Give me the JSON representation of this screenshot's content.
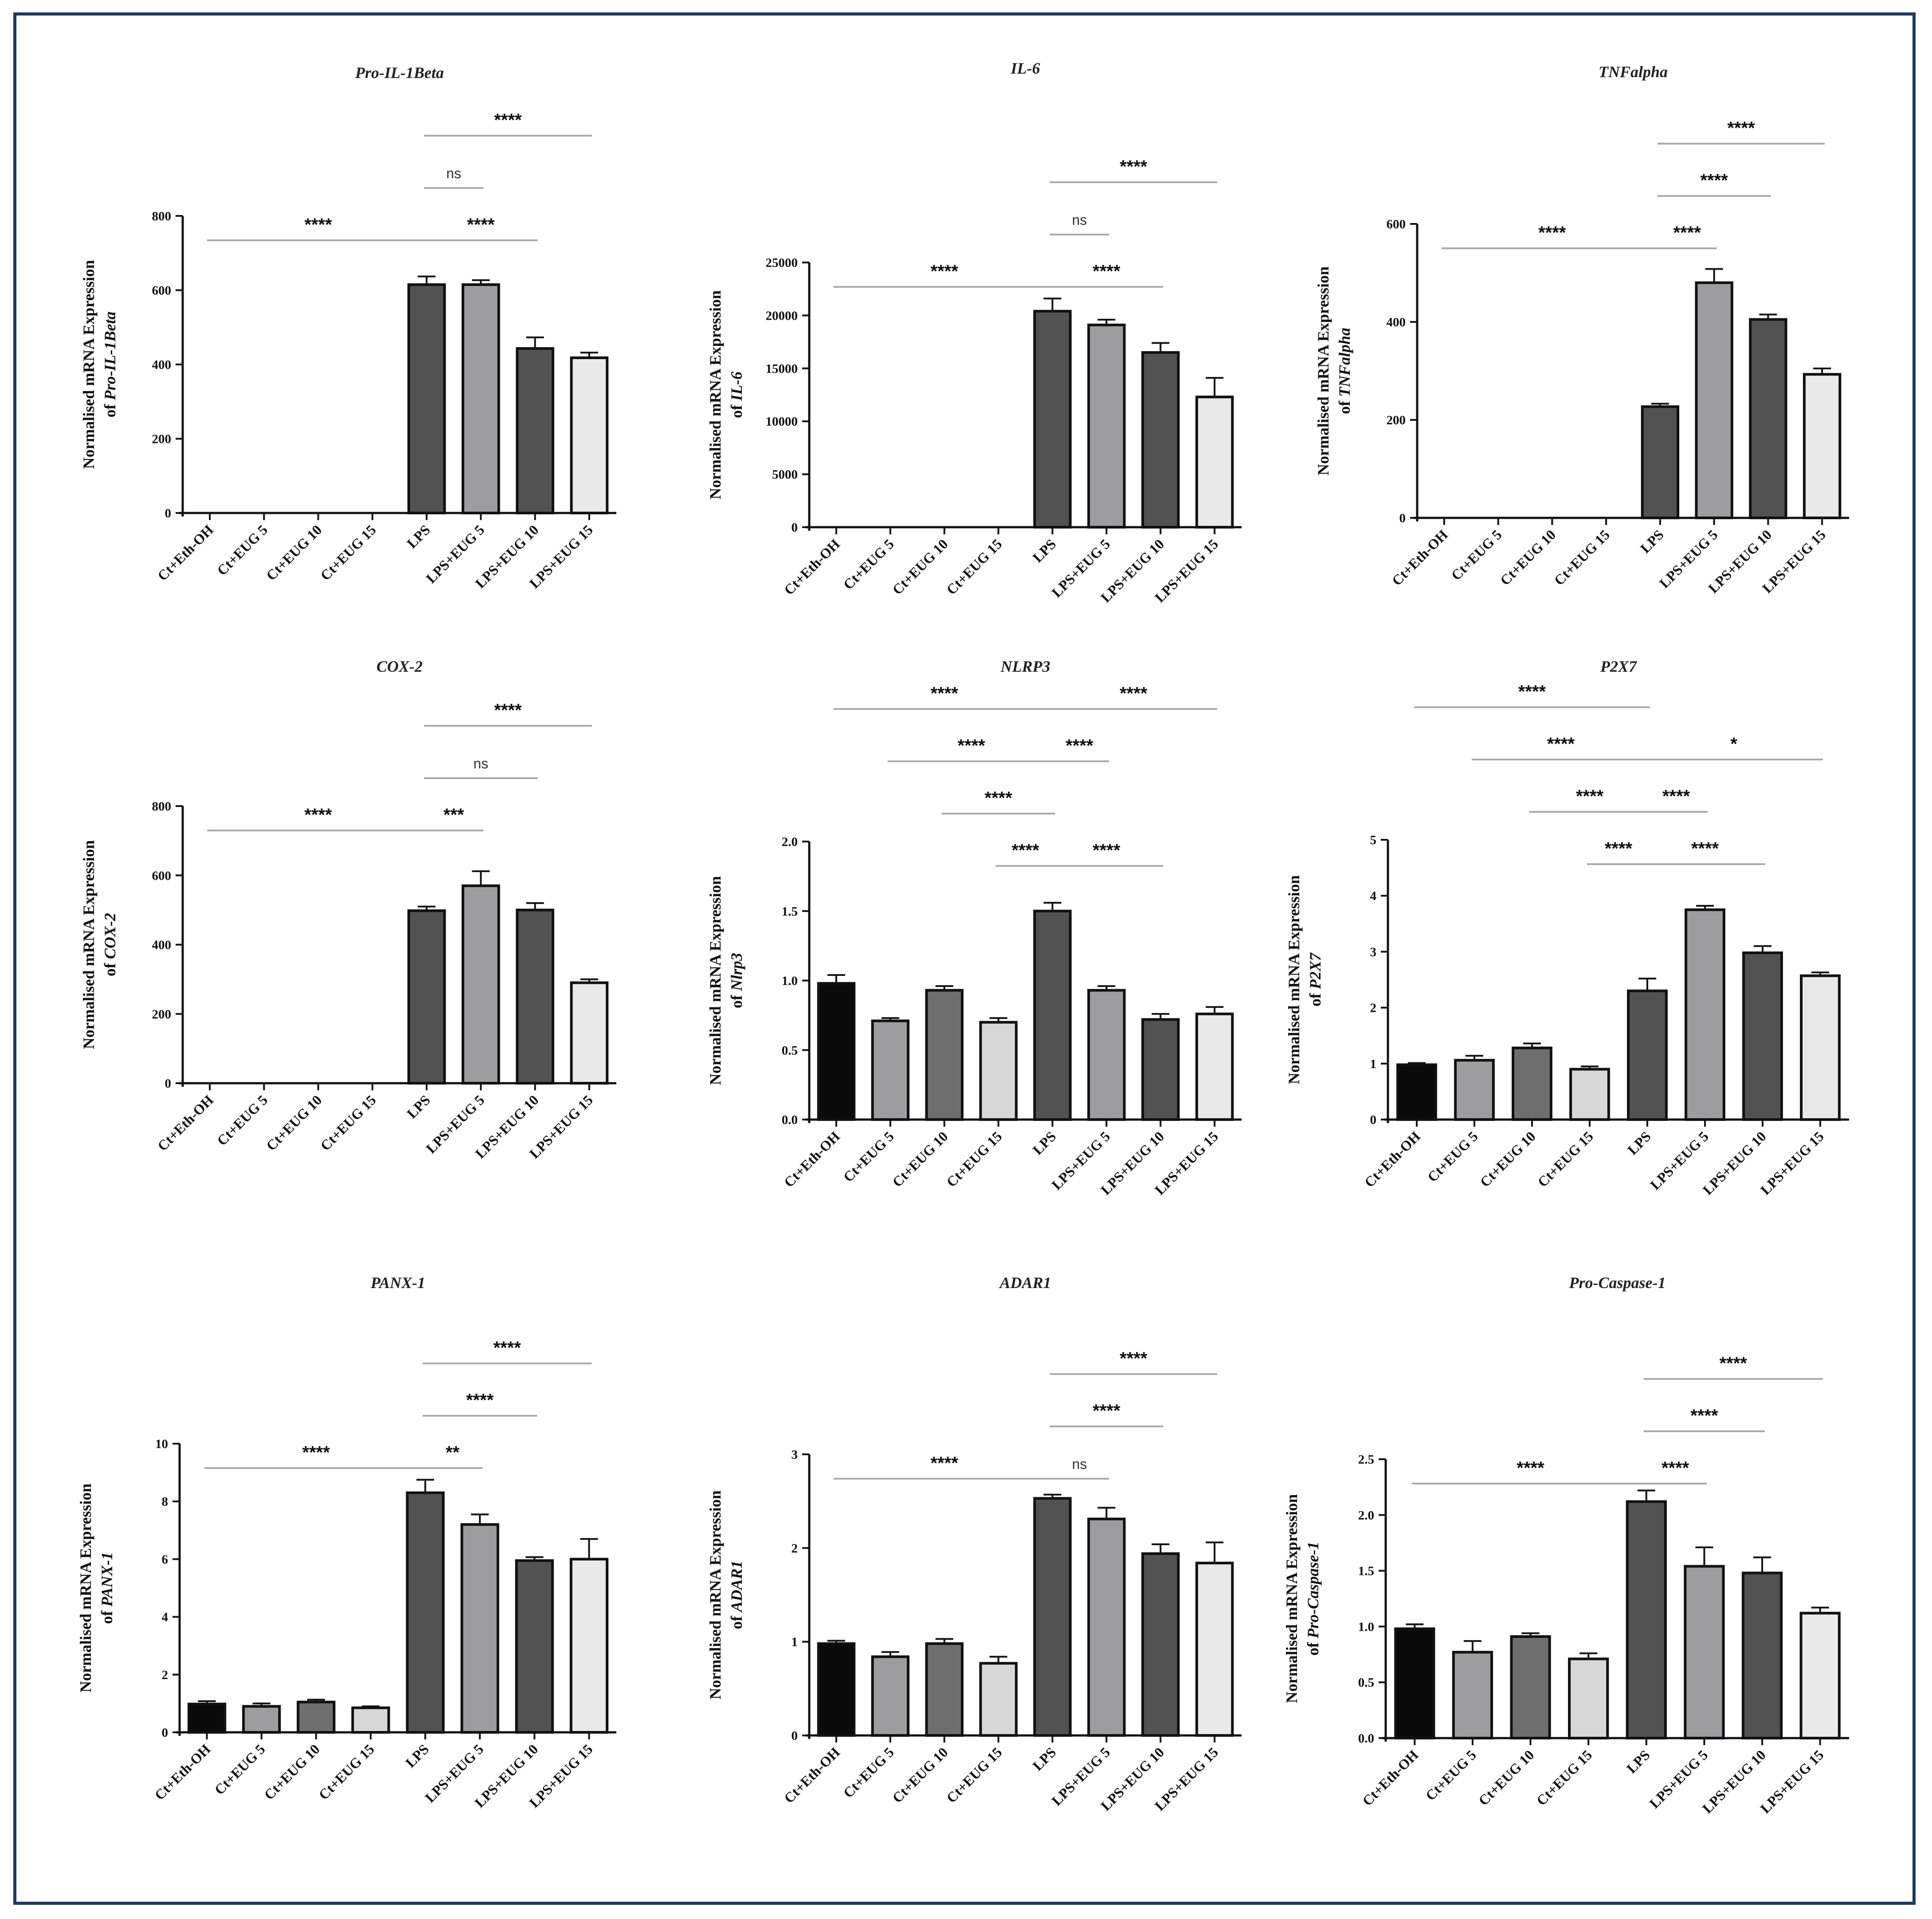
{
  "colors": {
    "frame": "#1f3864",
    "axis": "#111111",
    "bracket": "#aaaaaa",
    "bar_fills": [
      "#0a0a0a",
      "#9d9d9f",
      "#6e6e6e",
      "#d7d7d7",
      "#525252",
      "#9d9d9f",
      "#525252",
      "#e9e9e9"
    ]
  },
  "chart_data": [
    {
      "type": "bar",
      "title": "Pro-IL-1Beta",
      "ylabel_line1": "Normalised mRNA Expression",
      "ylabel_prefix": "of ",
      "ylabel_italic": "Pro-IL-1Beta",
      "categories": [
        "Ct+Eth-OH",
        "Ct+EUG 5",
        "Ct+EUG 10",
        "Ct+EUG 15",
        "LPS",
        "LPS+EUG 5",
        "LPS+EUG 10",
        "LPS+EUG 15"
      ],
      "values": [
        0,
        0,
        0,
        0,
        615,
        615,
        443,
        418
      ],
      "errors": [
        0,
        0,
        0,
        0,
        22,
        12,
        30,
        14
      ],
      "ylim": [
        0,
        800
      ],
      "yticks": [
        "0",
        "200",
        "400",
        "600",
        "800"
      ],
      "brackets": [
        {
          "from": 0,
          "to": 4,
          "label": "****",
          "level": 1
        },
        {
          "from": 4,
          "to": 5,
          "label": "ns",
          "level": 2
        },
        {
          "from": 4,
          "to": 6,
          "label": "****",
          "level": 1
        },
        {
          "from": 4,
          "to": 7,
          "label": "****",
          "level": 3
        }
      ]
    },
    {
      "type": "bar",
      "title": "IL-6",
      "ylabel_line1": "Normalised mRNA Expression",
      "ylabel_prefix": "of ",
      "ylabel_italic": "IL-6",
      "categories": [
        "Ct+Eth-OH",
        "Ct+EUG 5",
        "Ct+EUG 10",
        "Ct+EUG 15",
        "LPS",
        "LPS+EUG 5",
        "LPS+EUG 10",
        "LPS+EUG 15"
      ],
      "values": [
        0,
        0,
        0,
        0,
        20400,
        19100,
        16500,
        12300
      ],
      "errors": [
        0,
        0,
        0,
        0,
        1200,
        500,
        900,
        1800
      ],
      "ylim": [
        0,
        25000
      ],
      "yticks": [
        "0",
        "5000",
        "10000",
        "15000",
        "20000",
        "25000"
      ],
      "brackets": [
        {
          "from": 0,
          "to": 4,
          "label": "****",
          "level": 1
        },
        {
          "from": 4,
          "to": 5,
          "label": "ns",
          "level": 2
        },
        {
          "from": 4,
          "to": 6,
          "label": "****",
          "level": 1
        },
        {
          "from": 4,
          "to": 7,
          "label": "****",
          "level": 3
        }
      ]
    },
    {
      "type": "bar",
      "title": "TNFalpha",
      "ylabel_line1": "Normalised mRNA Expression",
      "ylabel_prefix": "of ",
      "ylabel_italic": "TNFalpha",
      "categories": [
        "Ct+Eth-OH",
        "Ct+EUG 5",
        "Ct+EUG 10",
        "Ct+EUG 15",
        "LPS",
        "LPS+EUG 5",
        "LPS+EUG 10",
        "LPS+EUG 15"
      ],
      "values": [
        0,
        0,
        0,
        0,
        227,
        480,
        405,
        293
      ],
      "errors": [
        0,
        0,
        0,
        0,
        6,
        28,
        10,
        12
      ],
      "ylim": [
        0,
        600
      ],
      "yticks": [
        "0",
        "200",
        "400",
        "600"
      ],
      "brackets": [
        {
          "from": 0,
          "to": 4,
          "label": "****",
          "level": 1
        },
        {
          "from": 4,
          "to": 5,
          "label": "****",
          "level": 1
        },
        {
          "from": 4,
          "to": 6,
          "label": "****",
          "level": 2
        },
        {
          "from": 4,
          "to": 7,
          "label": "****",
          "level": 3
        }
      ]
    },
    {
      "type": "bar",
      "title": "COX-2",
      "ylabel_line1": "Normalised mRNA Expression",
      "ylabel_prefix": "of ",
      "ylabel_italic": "COX-2",
      "categories": [
        "Ct+Eth-OH",
        "Ct+EUG 5",
        "Ct+EUG 10",
        "Ct+EUG 15",
        "LPS",
        "LPS+EUG 5",
        "LPS+EUG 10",
        "LPS+EUG 15"
      ],
      "values": [
        0,
        0,
        0,
        0,
        498,
        570,
        500,
        290
      ],
      "errors": [
        0,
        0,
        0,
        0,
        12,
        42,
        20,
        10
      ],
      "ylim": [
        0,
        800
      ],
      "yticks": [
        "0",
        "200",
        "400",
        "600",
        "800"
      ],
      "brackets": [
        {
          "from": 0,
          "to": 4,
          "label": "****",
          "level": 1
        },
        {
          "from": 4,
          "to": 5,
          "label": "***",
          "level": 1
        },
        {
          "from": 4,
          "to": 6,
          "label": "ns",
          "level": 2
        },
        {
          "from": 4,
          "to": 7,
          "label": "****",
          "level": 3
        }
      ]
    },
    {
      "type": "bar",
      "title": "NLRP3",
      "ylabel_line1": "Normalised mRNA Expression",
      "ylabel_prefix": "of ",
      "ylabel_italic": "Nlrp3",
      "categories": [
        "Ct+Eth-OH",
        "Ct+EUG 5",
        "Ct+EUG 10",
        "Ct+EUG 15",
        "LPS",
        "LPS+EUG 5",
        "LPS+EUG 10",
        "LPS+EUG 15"
      ],
      "values": [
        0.98,
        0.71,
        0.93,
        0.7,
        1.5,
        0.93,
        0.72,
        0.76
      ],
      "errors": [
        0.06,
        0.02,
        0.03,
        0.03,
        0.06,
        0.03,
        0.04,
        0.05
      ],
      "ylim": [
        0,
        2.0
      ],
      "yticks": [
        "0.0",
        "0.5",
        "1.0",
        "1.5",
        "2.0"
      ],
      "brackets": [
        {
          "from": 3,
          "to": 4,
          "label": "****",
          "level": 1
        },
        {
          "from": 2,
          "to": 4,
          "label": "****",
          "level": 2
        },
        {
          "from": 1,
          "to": 4,
          "label": "****",
          "level": 3
        },
        {
          "from": 0,
          "to": 4,
          "label": "****",
          "level": 4
        },
        {
          "from": 4,
          "to": 6,
          "label": "****",
          "level": 1
        },
        {
          "from": 4,
          "to": 5,
          "label": "****",
          "level": 3
        },
        {
          "from": 4,
          "to": 7,
          "label": "****",
          "level": 4
        }
      ]
    },
    {
      "type": "bar",
      "title": "P2X7",
      "ylabel_line1": "Normalised mRNA Expression",
      "ylabel_prefix": "of ",
      "ylabel_italic": "P2X7",
      "categories": [
        "Ct+Eth-OH",
        "Ct+EUG 5",
        "Ct+EUG 10",
        "Ct+EUG 15",
        "LPS",
        "LPS+EUG 5",
        "LPS+EUG 10",
        "LPS+EUG 15"
      ],
      "values": [
        0.98,
        1.06,
        1.28,
        0.9,
        2.3,
        3.75,
        2.98,
        2.57
      ],
      "errors": [
        0.03,
        0.08,
        0.08,
        0.05,
        0.22,
        0.07,
        0.12,
        0.06
      ],
      "ylim": [
        0,
        5
      ],
      "yticks": [
        "0",
        "1",
        "2",
        "3",
        "4",
        "5"
      ],
      "brackets": [
        {
          "from": 3,
          "to": 4,
          "label": "****",
          "level": 1
        },
        {
          "from": 2,
          "to": 4,
          "label": "****",
          "level": 2
        },
        {
          "from": 1,
          "to": 4,
          "label": "****",
          "level": 3
        },
        {
          "from": 0,
          "to": 4,
          "label": "****",
          "level": 4
        },
        {
          "from": 4,
          "to": 6,
          "label": "****",
          "level": 1
        },
        {
          "from": 4,
          "to": 5,
          "label": "****",
          "level": 2
        },
        {
          "from": 4,
          "to": 7,
          "label": "*",
          "level": 3
        }
      ]
    },
    {
      "type": "bar",
      "title": "PANX-1",
      "ylabel_line1": "Normalised mRNA Expression",
      "ylabel_prefix": "of ",
      "ylabel_italic": "PANX-1",
      "categories": [
        "Ct+Eth-OH",
        "Ct+EUG 5",
        "Ct+EUG 10",
        "Ct+EUG 15",
        "LPS",
        "LPS+EUG 5",
        "LPS+EUG 10",
        "LPS+EUG 15"
      ],
      "values": [
        0.98,
        0.9,
        1.05,
        0.85,
        8.3,
        7.2,
        5.95,
        6.0
      ],
      "errors": [
        0.1,
        0.1,
        0.08,
        0.05,
        0.45,
        0.35,
        0.12,
        0.7
      ],
      "ylim": [
        0,
        10
      ],
      "yticks": [
        "0",
        "2",
        "4",
        "6",
        "8",
        "10"
      ],
      "brackets": [
        {
          "from": 0,
          "to": 4,
          "label": "****",
          "level": 1
        },
        {
          "from": 4,
          "to": 5,
          "label": "**",
          "level": 1
        },
        {
          "from": 4,
          "to": 6,
          "label": "****",
          "level": 2
        },
        {
          "from": 4,
          "to": 7,
          "label": "****",
          "level": 3
        }
      ]
    },
    {
      "type": "bar",
      "title": "ADAR1",
      "ylabel_line1": "Normalised mRNA Expression",
      "ylabel_prefix": "of ",
      "ylabel_italic": "ADAR1",
      "categories": [
        "Ct+Eth-OH",
        "Ct+EUG 5",
        "Ct+EUG 10",
        "Ct+EUG 15",
        "LPS",
        "LPS+EUG 5",
        "LPS+EUG 10",
        "LPS+EUG 15"
      ],
      "values": [
        0.98,
        0.84,
        0.98,
        0.77,
        2.53,
        2.31,
        1.94,
        1.84
      ],
      "errors": [
        0.03,
        0.05,
        0.05,
        0.07,
        0.04,
        0.12,
        0.1,
        0.22
      ],
      "ylim": [
        0,
        3
      ],
      "yticks": [
        "0",
        "1",
        "2",
        "3"
      ],
      "brackets": [
        {
          "from": 0,
          "to": 4,
          "label": "****",
          "level": 1
        },
        {
          "from": 4,
          "to": 5,
          "label": "ns",
          "level": 1
        },
        {
          "from": 4,
          "to": 6,
          "label": "****",
          "level": 2
        },
        {
          "from": 4,
          "to": 7,
          "label": "****",
          "level": 3
        }
      ]
    },
    {
      "type": "bar",
      "title": "Pro-Caspase-1",
      "ylabel_line1": "Normalised mRNA Expression",
      "ylabel_prefix": "of ",
      "ylabel_italic": "Pro-Caspase-1",
      "categories": [
        "Ct+Eth-OH",
        "Ct+EUG 5",
        "Ct+EUG 10",
        "Ct+EUG 15",
        "LPS",
        "LPS+EUG 5",
        "LPS+EUG 10",
        "LPS+EUG 15"
      ],
      "values": [
        0.98,
        0.77,
        0.91,
        0.71,
        2.12,
        1.54,
        1.48,
        1.12
      ],
      "errors": [
        0.04,
        0.1,
        0.03,
        0.05,
        0.1,
        0.17,
        0.14,
        0.05
      ],
      "ylim": [
        0,
        2.5
      ],
      "yticks": [
        "0.0",
        "0.5",
        "1.0",
        "1.5",
        "2.0",
        "2.5"
      ],
      "brackets": [
        {
          "from": 0,
          "to": 4,
          "label": "****",
          "level": 1
        },
        {
          "from": 4,
          "to": 5,
          "label": "****",
          "level": 1
        },
        {
          "from": 4,
          "to": 6,
          "label": "****",
          "level": 2
        },
        {
          "from": 4,
          "to": 7,
          "label": "****",
          "level": 3
        }
      ]
    }
  ]
}
